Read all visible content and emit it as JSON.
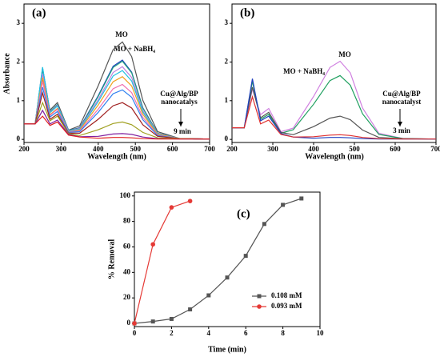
{
  "chart_data": [
    {
      "type": "line",
      "panel_label": "(a)",
      "xlabel": "Wavelength (nm)",
      "ylabel": "Absorbance",
      "xlim": [
        200,
        700
      ],
      "ylim": [
        -0.08,
        3.5
      ],
      "xticks": [
        200,
        300,
        400,
        500,
        600,
        700
      ],
      "yticks": [
        0,
        1,
        2,
        3
      ],
      "x": [
        200,
        230,
        250,
        270,
        290,
        320,
        350,
        400,
        440,
        465,
        490,
        520,
        560,
        620,
        700
      ],
      "annotations": [
        "MO",
        "MO + NaBH₄",
        "Cu@Alg/BP",
        "nanocatalys",
        "9 min"
      ],
      "series": [
        {
          "color": "#555555",
          "values": [
            0.4,
            0.4,
            1.55,
            0.76,
            0.95,
            0.24,
            0.35,
            1.39,
            2.32,
            2.52,
            2.14,
            1.01,
            0.2,
            0.02,
            0.01
          ]
        },
        {
          "color": "#1f3fbf",
          "values": [
            0.4,
            0.4,
            1.85,
            0.72,
            0.9,
            0.23,
            0.3,
            1.13,
            1.89,
            2.05,
            1.74,
            0.82,
            0.16,
            0.02,
            0.01
          ]
        },
        {
          "color": "#20a080",
          "values": [
            0.4,
            0.4,
            1.8,
            0.72,
            0.9,
            0.23,
            0.29,
            1.11,
            1.86,
            2.02,
            1.72,
            0.81,
            0.16,
            0.02,
            0.01
          ]
        },
        {
          "color": "#c080e0",
          "values": [
            0.4,
            0.4,
            1.7,
            0.7,
            0.88,
            0.22,
            0.28,
            1.03,
            1.73,
            1.88,
            1.6,
            0.75,
            0.15,
            0.02,
            0.01
          ]
        },
        {
          "color": "#20c0e0",
          "values": [
            0.4,
            0.4,
            1.87,
            0.69,
            0.86,
            0.22,
            0.26,
            0.98,
            1.64,
            1.78,
            1.51,
            0.71,
            0.14,
            0.02,
            0.01
          ]
        },
        {
          "color": "#f0a020",
          "values": [
            0.4,
            0.4,
            1.6,
            0.64,
            0.8,
            0.2,
            0.24,
            0.89,
            1.49,
            1.62,
            1.38,
            0.65,
            0.13,
            0.02,
            0.01
          ]
        },
        {
          "color": "#f070b0",
          "values": [
            0.4,
            0.4,
            1.5,
            0.62,
            0.78,
            0.2,
            0.22,
            0.78,
            1.31,
            1.42,
            1.21,
            0.57,
            0.11,
            0.02,
            0.01
          ]
        },
        {
          "color": "#3080f0",
          "values": [
            0.4,
            0.4,
            1.35,
            0.58,
            0.72,
            0.18,
            0.2,
            0.7,
            1.18,
            1.28,
            1.09,
            0.51,
            0.1,
            0.02,
            0.01
          ]
        },
        {
          "color": "#a02020",
          "values": [
            0.4,
            0.4,
            1.2,
            0.52,
            0.65,
            0.16,
            0.16,
            0.52,
            0.87,
            0.95,
            0.81,
            0.38,
            0.08,
            0.02,
            0.01
          ]
        },
        {
          "color": "#a0a020",
          "values": [
            0.4,
            0.4,
            0.95,
            0.48,
            0.6,
            0.15,
            0.1,
            0.25,
            0.41,
            0.45,
            0.38,
            0.18,
            0.04,
            0.02,
            0.01
          ]
        },
        {
          "color": "#8020a0",
          "values": [
            0.4,
            0.4,
            0.75,
            0.4,
            0.5,
            0.13,
            0.07,
            0.08,
            0.14,
            0.15,
            0.13,
            0.06,
            0.02,
            0.01,
            0.01
          ]
        },
        {
          "color": "#e02020",
          "values": [
            0.4,
            0.4,
            0.6,
            0.36,
            0.45,
            0.11,
            0.06,
            0.03,
            0.05,
            0.05,
            0.04,
            0.02,
            0.01,
            0.01,
            0.01
          ]
        }
      ]
    },
    {
      "type": "line",
      "panel_label": "(b)",
      "xlabel": "Wavelength (nm)",
      "xlim": [
        200,
        700
      ],
      "ylim": [
        -0.08,
        3.5
      ],
      "xticks": [
        200,
        300,
        400,
        500,
        600,
        700
      ],
      "yticks": [
        0,
        1,
        2,
        3
      ],
      "x": [
        200,
        230,
        250,
        270,
        290,
        320,
        350,
        400,
        440,
        465,
        490,
        520,
        560,
        620,
        700
      ],
      "annotations": [
        "MO",
        "MO + NaBH₄",
        "Cu@Alg/BP",
        "nanocatalyst",
        "3 min"
      ],
      "series": [
        {
          "color": "#d080e0",
          "values": [
            0.3,
            0.3,
            1.3,
            0.64,
            0.8,
            0.2,
            0.29,
            1.11,
            1.86,
            2.02,
            1.72,
            0.81,
            0.16,
            0.02,
            0.01
          ]
        },
        {
          "color": "#20a060",
          "values": [
            0.3,
            0.3,
            1.5,
            0.52,
            0.65,
            0.16,
            0.25,
            0.91,
            1.52,
            1.65,
            1.4,
            0.66,
            0.13,
            0.02,
            0.01
          ]
        },
        {
          "color": "#555555",
          "values": [
            0.3,
            0.3,
            1.35,
            0.56,
            0.7,
            0.18,
            0.12,
            0.33,
            0.55,
            0.6,
            0.51,
            0.24,
            0.05,
            0.02,
            0.01
          ]
        },
        {
          "color": "#2040c0",
          "values": [
            0.3,
            0.3,
            1.57,
            0.48,
            0.6,
            0.15,
            0.06,
            0.03,
            0.05,
            0.05,
            0.04,
            0.02,
            0.01,
            0.01,
            0.01
          ]
        },
        {
          "color": "#e03030",
          "values": [
            0.3,
            0.3,
            1.1,
            0.4,
            0.5,
            0.13,
            0.06,
            0.07,
            0.11,
            0.12,
            0.1,
            0.05,
            0.02,
            0.01,
            0.01
          ]
        }
      ]
    },
    {
      "type": "line",
      "panel_label": "(c)",
      "xlabel": "Time (min)",
      "ylabel": "% Removal",
      "xlim": [
        0,
        10
      ],
      "ylim": [
        -2.5,
        103
      ],
      "xticks": [
        0,
        2,
        4,
        6,
        8,
        10
      ],
      "yticks": [
        0,
        20,
        40,
        60,
        80,
        100
      ],
      "legend": "lower right",
      "series": [
        {
          "name": "0.108 mM",
          "color": "#555555",
          "marker": "square",
          "x": [
            0,
            1,
            2,
            3,
            4,
            5,
            6,
            7,
            8,
            9
          ],
          "values": [
            0,
            1.5,
            3.5,
            11,
            22,
            36,
            53,
            78,
            93,
            98
          ]
        },
        {
          "name": "0.093 mM",
          "color": "#e53935",
          "marker": "circle",
          "x": [
            0,
            1,
            2,
            3
          ],
          "values": [
            0,
            62,
            91,
            96
          ]
        }
      ]
    }
  ]
}
